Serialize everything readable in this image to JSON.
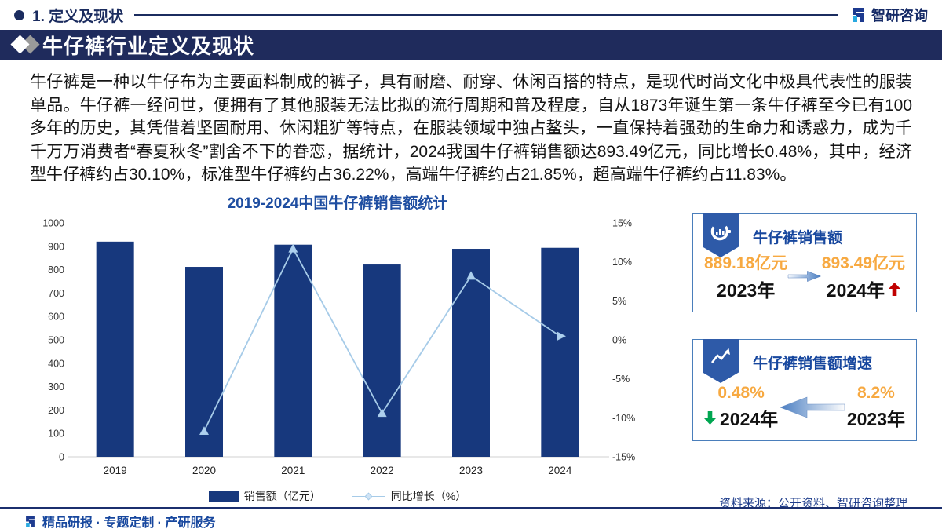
{
  "page": {
    "section_label": "1. 定义及现状",
    "brand": "智研咨询",
    "banner_title": "牛仔裤行业定义及现状",
    "intro": "牛仔裤是一种以牛仔布为主要面料制成的裤子，具有耐磨、耐穿、休闲百搭的特点，是现代时尚文化中极具代表性的服装单品。牛仔裤一经问世，便拥有了其他服装无法比拟的流行周期和普及程度，自从1873年诞生第一条牛仔裤至今已有100多年的历史，其凭借着坚固耐用、休闲粗犷等特点，在服装领域中独占鳌头，一直保持着强劲的生命力和诱惑力，成为千千万万消费者“春夏秋冬”割舍不下的眷恋，据统计，2024我国牛仔裤销售额达893.49亿元，同比增长0.48%，其中，经济型牛仔裤约占30.10%，标准型牛仔裤约占36.22%，高端牛仔裤约占21.85%，超高端牛仔裤约占11.83%。",
    "source_note": "资料来源：公开资料、智研咨询整理",
    "footer_tagline": "精品研报 · 专题定制 · 产研服务"
  },
  "chart_data": {
    "type": "bar",
    "title": "2019-2024中国牛仔裤销售额统计",
    "categories": [
      "2019",
      "2020",
      "2021",
      "2022",
      "2023",
      "2024"
    ],
    "series": [
      {
        "name": "销售额（亿元）",
        "type": "bar",
        "axis": "left",
        "values": [
          920,
          812,
          907,
          822,
          889.18,
          893.49
        ]
      },
      {
        "name": "同比增长（%）",
        "type": "line",
        "axis": "right",
        "values": [
          null,
          -11.7,
          11.7,
          -9.4,
          8.2,
          0.48
        ]
      }
    ],
    "left_axis": {
      "min": 0,
      "max": 1000,
      "step": 100
    },
    "right_axis": {
      "min": -15,
      "max": 15,
      "step": 5,
      "suffix": "%"
    },
    "legend_position": "bottom",
    "grid": false,
    "colors": {
      "bar": "#17387d",
      "line": "#a6cbe8",
      "marker": "#aed0ee"
    }
  },
  "cards": [
    {
      "title": "牛仔裤销售额",
      "icon": "donut-chart-icon",
      "arrow_direction": "right",
      "left": {
        "value": "889.18亿元",
        "year": "2023年"
      },
      "right": {
        "value": "893.49亿元",
        "year": "2024年",
        "trend": "up"
      }
    },
    {
      "title": "牛仔裤销售额增速",
      "icon": "trend-up-chart-icon",
      "arrow_direction": "left",
      "left": {
        "value": "0.48%",
        "year": "2024年",
        "trend": "down"
      },
      "right": {
        "value": "8.2%",
        "year": "2023年"
      }
    }
  ],
  "colors": {
    "banner_navy": "#1f2b5c",
    "bar_blue": "#17387d",
    "line_blue": "#a6cbe8",
    "title_blue": "#1f4ea1",
    "value_orange": "#f7a941",
    "card_border": "#4a7ebb",
    "badge_blue": "#2e5aa8",
    "trend_up_red": "#c00000",
    "trend_down_green": "#00a651"
  }
}
